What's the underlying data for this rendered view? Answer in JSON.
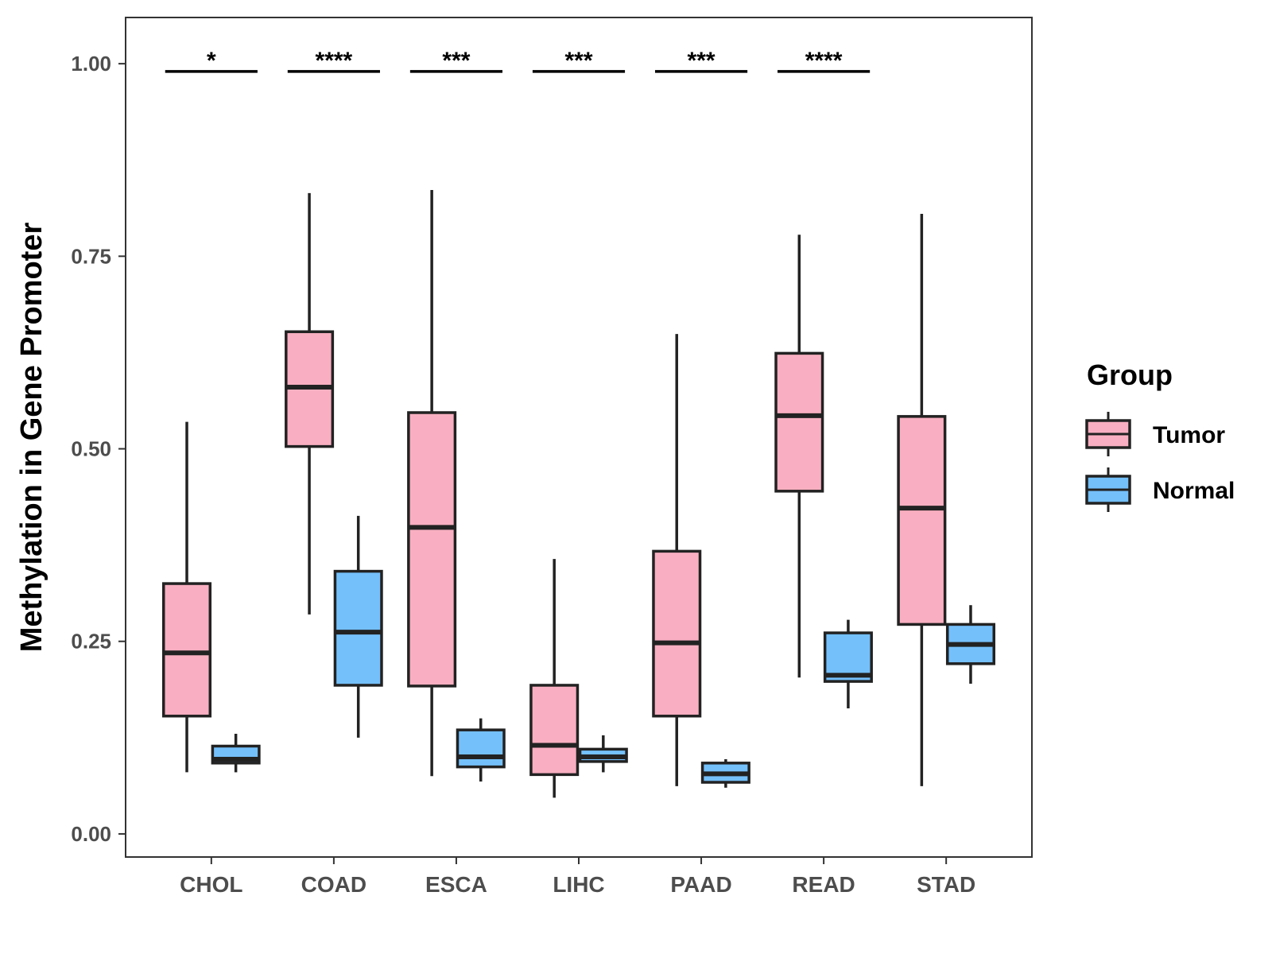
{
  "chart_data": {
    "type": "box",
    "title": "",
    "xlabel": "",
    "ylabel": "Methylation in Gene Promoter",
    "ylim": [
      -0.03,
      1.06
    ],
    "yticks": [
      0.0,
      0.25,
      0.5,
      0.75,
      1.0
    ],
    "ytick_labels": [
      "0.00",
      "0.25",
      "0.50",
      "0.75",
      "1.00"
    ],
    "categories": [
      "CHOL",
      "COAD",
      "ESCA",
      "LIHC",
      "PAAD",
      "READ",
      "STAD"
    ],
    "legend": {
      "title": "Group",
      "position": "right",
      "entries": [
        {
          "name": "Tumor",
          "color": "#F9AFC1"
        },
        {
          "name": "Normal",
          "color": "#74C0FB"
        }
      ]
    },
    "series": [
      {
        "name": "Tumor",
        "color": "#F9AFC1",
        "boxes": [
          {
            "category": "CHOL",
            "min": 0.08,
            "q1": 0.153,
            "median": 0.235,
            "q3": 0.325,
            "max": 0.535
          },
          {
            "category": "COAD",
            "min": 0.285,
            "q1": 0.503,
            "median": 0.58,
            "q3": 0.652,
            "max": 0.832
          },
          {
            "category": "ESCA",
            "min": 0.075,
            "q1": 0.192,
            "median": 0.398,
            "q3": 0.547,
            "max": 0.836
          },
          {
            "category": "LIHC",
            "min": 0.047,
            "q1": 0.077,
            "median": 0.115,
            "q3": 0.193,
            "max": 0.357
          },
          {
            "category": "PAAD",
            "min": 0.062,
            "q1": 0.153,
            "median": 0.248,
            "q3": 0.367,
            "max": 0.649
          },
          {
            "category": "READ",
            "min": 0.203,
            "q1": 0.445,
            "median": 0.543,
            "q3": 0.624,
            "max": 0.778
          },
          {
            "category": "STAD",
            "min": 0.062,
            "q1": 0.272,
            "median": 0.423,
            "q3": 0.542,
            "max": 0.805
          }
        ]
      },
      {
        "name": "Normal",
        "color": "#74C0FB",
        "boxes": [
          {
            "category": "CHOL",
            "min": 0.08,
            "q1": 0.092,
            "median": 0.097,
            "q3": 0.114,
            "max": 0.13
          },
          {
            "category": "COAD",
            "min": 0.125,
            "q1": 0.193,
            "median": 0.262,
            "q3": 0.341,
            "max": 0.413
          },
          {
            "category": "ESCA",
            "min": 0.068,
            "q1": 0.087,
            "median": 0.1,
            "q3": 0.135,
            "max": 0.15
          },
          {
            "category": "LIHC",
            "min": 0.08,
            "q1": 0.094,
            "median": 0.1,
            "q3": 0.11,
            "max": 0.128
          },
          {
            "category": "PAAD",
            "min": 0.06,
            "q1": 0.067,
            "median": 0.078,
            "q3": 0.092,
            "max": 0.097
          },
          {
            "category": "READ",
            "min": 0.163,
            "q1": 0.198,
            "median": 0.206,
            "q3": 0.261,
            "max": 0.278
          },
          {
            "category": "STAD",
            "min": 0.195,
            "q1": 0.221,
            "median": 0.246,
            "q3": 0.272,
            "max": 0.297
          }
        ]
      }
    ],
    "significance": [
      {
        "category": "CHOL",
        "label": "*",
        "y": 0.99
      },
      {
        "category": "COAD",
        "label": "****",
        "y": 0.99
      },
      {
        "category": "ESCA",
        "label": "***",
        "y": 0.99
      },
      {
        "category": "LIHC",
        "label": "***",
        "y": 0.99
      },
      {
        "category": "PAAD",
        "label": "***",
        "y": 0.99
      },
      {
        "category": "READ",
        "label": "****",
        "y": 0.99
      }
    ]
  }
}
